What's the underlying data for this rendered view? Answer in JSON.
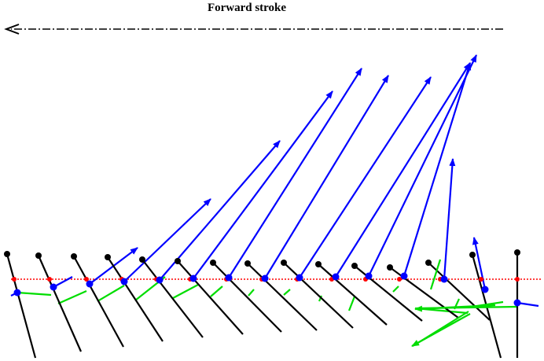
{
  "title": "Forward stroke",
  "colors": {
    "body": "#000000",
    "force_vector": "#0000ff",
    "green_vector": "#00dd00",
    "reference_line": "#ff0000",
    "marker": "#ff0000"
  },
  "direction_arrow": {
    "style": "dash-dot",
    "direction": "left"
  },
  "frame_count": 15
}
